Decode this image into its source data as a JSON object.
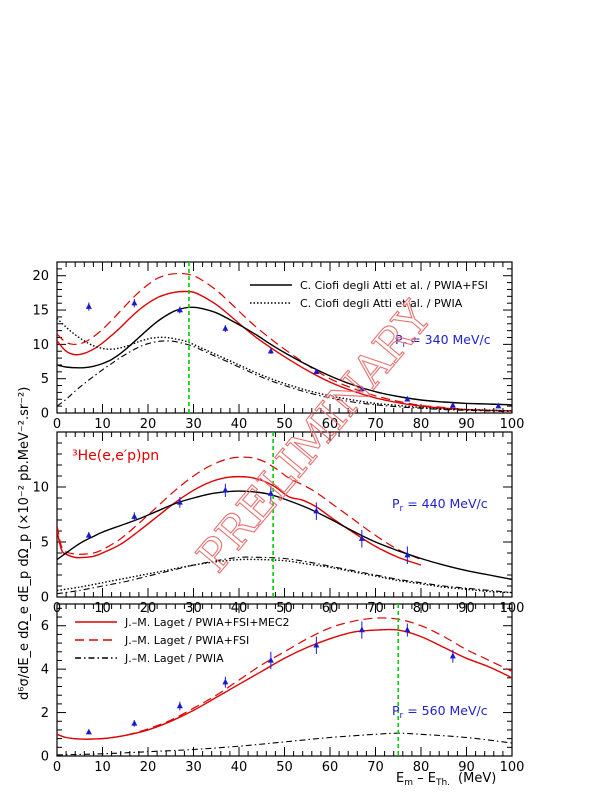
{
  "figure": {
    "xlabel": "E_m – E_Th.  (MeV)",
    "xlabel_main": "E",
    "xlabel_sub1": "m",
    "xlabel_mid": " – E",
    "xlabel_sub2": "Th.",
    "xlabel_unit": "(MeV)",
    "ylabel": "d⁶σ/dE_e dΩ_e dE_p dΩ_p  (×10⁻² pb.MeV⁻².sr⁻²)",
    "reaction": "³He(e,e′p)pn",
    "watermark": "PRELIMINARY",
    "colors": {
      "data": "#1a1acc",
      "laget": "#e00000",
      "ciofi": "#000000",
      "marker": "#00cc00"
    }
  },
  "chart_data": [
    {
      "type": "line",
      "panel": "top",
      "momentum_label": "P_r = 340 MeV/c",
      "xlim": [
        0,
        100
      ],
      "ylim": [
        0,
        22
      ],
      "yticks": [
        0,
        5,
        10,
        15,
        20
      ],
      "xticks": [
        0,
        10,
        20,
        30,
        40,
        50,
        60,
        70,
        80,
        90,
        100
      ],
      "vline_x": 29,
      "legend": [
        {
          "label": "C. Ciofi degli Atti et al. / PWIA+FSI",
          "style": "solid",
          "color": "#000000"
        },
        {
          "label": "C. Ciofi degli Atti et al. / PWIA",
          "style": "dotted",
          "color": "#000000"
        }
      ],
      "data_points": [
        {
          "x": 7,
          "y": 15.5,
          "err": 0.6
        },
        {
          "x": 17,
          "y": 16.0,
          "err": 0.6
        },
        {
          "x": 27,
          "y": 15.0,
          "err": 0.5
        },
        {
          "x": 37,
          "y": 12.3,
          "err": 0.5
        },
        {
          "x": 47,
          "y": 9.0,
          "err": 0.4
        },
        {
          "x": 57,
          "y": 6.0,
          "err": 0.3
        },
        {
          "x": 67,
          "y": 3.5,
          "err": 0.3
        },
        {
          "x": 77,
          "y": 2.0,
          "err": 0.3
        },
        {
          "x": 87,
          "y": 1.1,
          "err": 0.2
        },
        {
          "x": 97,
          "y": 1.0,
          "err": 0.2
        }
      ],
      "series": [
        {
          "style": "laget_full",
          "x": [
            0,
            2,
            4,
            6,
            8,
            10,
            12,
            14,
            16,
            18,
            20,
            22,
            24,
            26,
            28,
            30,
            32,
            35,
            38,
            41,
            44,
            47,
            50,
            55,
            60,
            65,
            70,
            75,
            80,
            85,
            90,
            95,
            100
          ],
          "y": [
            10.5,
            9.0,
            8.5,
            8.7,
            9.3,
            10.2,
            11.3,
            12.5,
            13.8,
            15.0,
            16.0,
            16.8,
            17.3,
            17.6,
            17.7,
            17.6,
            17.0,
            15.8,
            14.2,
            12.5,
            10.9,
            9.5,
            8.2,
            6.2,
            4.5,
            3.2,
            2.2,
            1.5,
            1.0,
            0.7,
            0.5,
            0.4,
            0.3
          ]
        },
        {
          "style": "laget_nomec",
          "x": [
            0,
            2,
            4,
            6,
            8,
            10,
            12,
            14,
            16,
            18,
            20,
            22,
            24,
            26,
            28,
            30,
            32,
            35,
            38,
            41,
            44,
            47,
            50,
            55,
            60,
            65,
            70,
            75,
            80,
            85,
            90,
            95,
            100
          ],
          "y": [
            11.5,
            10.3,
            10.0,
            10.3,
            11.1,
            12.2,
            13.5,
            14.9,
            16.3,
            17.6,
            18.7,
            19.6,
            20.1,
            20.3,
            20.3,
            20.0,
            19.3,
            17.9,
            16.1,
            14.2,
            12.4,
            10.8,
            9.3,
            7.0,
            5.0,
            3.6,
            2.5,
            1.7,
            1.1,
            0.8,
            0.5,
            0.4,
            0.3
          ]
        },
        {
          "style": "ciofi_fsi",
          "x": [
            0,
            2,
            4,
            6,
            8,
            10,
            12,
            14,
            16,
            18,
            20,
            22,
            24,
            26,
            28,
            30,
            32,
            35,
            38,
            41,
            44,
            47,
            50,
            55,
            60,
            65,
            70,
            75,
            80,
            85,
            90,
            95,
            100
          ],
          "y": [
            7.0,
            6.7,
            6.6,
            6.6,
            6.8,
            7.2,
            7.8,
            8.7,
            9.8,
            11.0,
            12.2,
            13.3,
            14.2,
            14.9,
            15.3,
            15.4,
            15.2,
            14.6,
            13.6,
            12.5,
            11.3,
            10.0,
            8.8,
            7.0,
            5.4,
            4.1,
            3.1,
            2.4,
            1.9,
            1.6,
            1.4,
            1.3,
            1.2
          ]
        },
        {
          "style": "ciofi_pwia",
          "x": [
            0,
            2,
            4,
            6,
            8,
            10,
            12,
            14,
            16,
            18,
            20,
            22,
            24,
            26,
            28,
            30,
            32,
            35,
            38,
            41,
            44,
            47,
            50,
            55,
            60,
            65,
            70,
            75,
            80,
            85,
            90,
            95,
            100
          ],
          "y": [
            13.8,
            12.5,
            11.4,
            10.5,
            9.8,
            9.4,
            9.3,
            9.5,
            9.9,
            10.4,
            10.8,
            11.0,
            11.0,
            10.8,
            10.5,
            10.0,
            9.4,
            8.5,
            7.6,
            6.7,
            5.8,
            5.0,
            4.3,
            3.3,
            2.5,
            1.9,
            1.4,
            1.1,
            0.8,
            0.6,
            0.5,
            0.4,
            0.3
          ]
        },
        {
          "style": "laget_pwia",
          "x": [
            0,
            2,
            4,
            6,
            8,
            10,
            12,
            14,
            16,
            18,
            20,
            22,
            24,
            26,
            28,
            30,
            32,
            35,
            38,
            41,
            44,
            47,
            50,
            55,
            60,
            65,
            70,
            75,
            80,
            85,
            90,
            95,
            100
          ],
          "y": [
            1.0,
            2.0,
            3.2,
            4.3,
            5.3,
            6.3,
            7.2,
            8.1,
            8.9,
            9.6,
            10.1,
            10.4,
            10.5,
            10.4,
            10.1,
            9.7,
            9.1,
            8.2,
            7.3,
            6.4,
            5.5,
            4.7,
            4.0,
            3.0,
            2.2,
            1.6,
            1.2,
            0.9,
            0.7,
            0.5,
            0.4,
            0.3,
            0.2
          ]
        }
      ]
    },
    {
      "type": "line",
      "panel": "middle",
      "momentum_label": "P_r = 440 MeV/c",
      "xlim": [
        0,
        100
      ],
      "ylim": [
        0,
        15
      ],
      "yticks": [
        0,
        5,
        10
      ],
      "xticks": [
        0,
        10,
        20,
        30,
        40,
        50,
        60,
        70,
        80,
        90,
        100
      ],
      "vline_x": 47.5,
      "data_points": [
        {
          "x": 7,
          "y": 5.6,
          "err": 0.3
        },
        {
          "x": 17,
          "y": 7.3,
          "err": 0.4
        },
        {
          "x": 27,
          "y": 8.6,
          "err": 0.5
        },
        {
          "x": 37,
          "y": 9.7,
          "err": 0.6
        },
        {
          "x": 47,
          "y": 9.4,
          "err": 0.7
        },
        {
          "x": 57,
          "y": 7.8,
          "err": 0.8
        },
        {
          "x": 67,
          "y": 5.3,
          "err": 0.8
        },
        {
          "x": 77,
          "y": 3.8,
          "err": 0.8
        }
      ],
      "series": [
        {
          "style": "laget_full",
          "x": [
            0,
            1,
            2,
            4,
            6,
            8,
            10,
            14,
            18,
            22,
            26,
            30,
            34,
            38,
            42,
            45,
            48,
            51,
            54,
            57,
            60,
            65,
            70,
            75,
            80
          ],
          "y": [
            6.0,
            4.3,
            3.9,
            3.6,
            3.6,
            3.7,
            4.0,
            4.8,
            6.0,
            7.3,
            8.6,
            9.7,
            10.5,
            10.9,
            10.9,
            10.6,
            10.0,
            9.1,
            8.8,
            8.2,
            7.3,
            5.9,
            4.6,
            3.6,
            2.9
          ]
        },
        {
          "style": "laget_nomec",
          "x": [
            0,
            1,
            2,
            4,
            6,
            8,
            10,
            14,
            18,
            22,
            26,
            30,
            34,
            38,
            42,
            45,
            48,
            51,
            54,
            57,
            60,
            65,
            70,
            75,
            80
          ],
          "y": [
            6.5,
            4.6,
            4.1,
            3.9,
            3.9,
            4.0,
            4.3,
            5.3,
            6.7,
            8.2,
            9.7,
            11.0,
            12.0,
            12.6,
            12.7,
            12.4,
            11.7,
            10.8,
            10.2,
            9.5,
            8.6,
            7.1,
            5.6,
            4.3,
            3.4
          ]
        },
        {
          "style": "ciofi_fsi",
          "x": [
            0,
            2,
            4,
            6,
            8,
            10,
            14,
            18,
            22,
            26,
            30,
            34,
            38,
            42,
            46,
            50,
            55,
            60,
            65,
            70,
            75,
            80,
            85,
            90,
            95,
            100
          ],
          "y": [
            3.4,
            4.0,
            4.6,
            5.1,
            5.5,
            5.9,
            6.5,
            7.1,
            7.8,
            8.5,
            9.0,
            9.4,
            9.6,
            9.6,
            9.4,
            8.9,
            8.1,
            7.1,
            6.0,
            5.0,
            4.2,
            3.5,
            2.9,
            2.4,
            2.0,
            1.6
          ]
        },
        {
          "style": "ciofi_pwia",
          "x": [
            0,
            5,
            10,
            15,
            20,
            25,
            30,
            35,
            40,
            45,
            50,
            55,
            60,
            65,
            70,
            75,
            80,
            85,
            90,
            95,
            100
          ],
          "y": [
            0.6,
            0.9,
            1.3,
            1.7,
            2.1,
            2.5,
            2.9,
            3.2,
            3.4,
            3.4,
            3.3,
            3.0,
            2.7,
            2.3,
            1.9,
            1.5,
            1.2,
            0.9,
            0.7,
            0.5,
            0.4
          ]
        },
        {
          "style": "laget_pwia",
          "x": [
            0,
            5,
            10,
            15,
            20,
            25,
            30,
            35,
            40,
            45,
            50,
            55,
            60,
            65,
            70,
            75,
            80,
            85,
            90,
            95,
            100
          ],
          "y": [
            0.3,
            0.6,
            1.0,
            1.4,
            1.9,
            2.4,
            2.9,
            3.3,
            3.6,
            3.6,
            3.5,
            3.2,
            2.8,
            2.4,
            2.0,
            1.6,
            1.3,
            1.0,
            0.8,
            0.6,
            0.4
          ]
        }
      ]
    },
    {
      "type": "line",
      "panel": "bottom",
      "momentum_label": "P_r = 560 MeV/c",
      "xlim": [
        0,
        100
      ],
      "ylim": [
        0,
        7
      ],
      "yticks": [
        0,
        2,
        4,
        6
      ],
      "xticks": [
        0,
        10,
        20,
        30,
        40,
        50,
        60,
        70,
        80,
        90,
        100
      ],
      "vline_x": 75,
      "legend": [
        {
          "label": "J.–M. Laget / PWIA+FSI+MEC2",
          "style": "solid",
          "color": "#e00000"
        },
        {
          "label": "J.–M. Laget / PWIA+FSI",
          "style": "dashed",
          "color": "#e00000"
        },
        {
          "label": "J.–M. Laget / PWIA",
          "style": "dashdot",
          "color": "#000000"
        }
      ],
      "data_points": [
        {
          "x": 7,
          "y": 1.1,
          "err": 0.1
        },
        {
          "x": 17,
          "y": 1.5,
          "err": 0.15
        },
        {
          "x": 27,
          "y": 2.3,
          "err": 0.2
        },
        {
          "x": 37,
          "y": 3.4,
          "err": 0.25
        },
        {
          "x": 47,
          "y": 4.4,
          "err": 0.4
        },
        {
          "x": 57,
          "y": 5.1,
          "err": 0.4
        },
        {
          "x": 67,
          "y": 5.8,
          "err": 0.4
        },
        {
          "x": 77,
          "y": 5.8,
          "err": 0.3
        },
        {
          "x": 87,
          "y": 4.6,
          "err": 0.3
        }
      ],
      "series": [
        {
          "style": "laget_full",
          "x": [
            0,
            2,
            5,
            10,
            15,
            20,
            25,
            30,
            35,
            40,
            45,
            50,
            55,
            60,
            65,
            70,
            75,
            80,
            85,
            90,
            95,
            100
          ],
          "y": [
            1.0,
            0.85,
            0.78,
            0.8,
            0.95,
            1.2,
            1.6,
            2.1,
            2.7,
            3.3,
            3.9,
            4.5,
            5.0,
            5.4,
            5.7,
            5.8,
            5.8,
            5.5,
            5.0,
            4.5,
            4.1,
            3.6
          ]
        },
        {
          "style": "laget_nomec",
          "x": [
            0,
            2,
            5,
            10,
            15,
            20,
            25,
            30,
            35,
            40,
            45,
            50,
            55,
            60,
            65,
            70,
            75,
            80,
            85,
            90,
            95,
            100
          ],
          "y": [
            1.0,
            0.85,
            0.78,
            0.8,
            0.95,
            1.25,
            1.65,
            2.2,
            2.8,
            3.5,
            4.2,
            4.8,
            5.4,
            5.9,
            6.2,
            6.35,
            6.3,
            6.0,
            5.5,
            4.9,
            4.4,
            3.9
          ]
        },
        {
          "style": "laget_pwia",
          "x": [
            0,
            10,
            20,
            30,
            40,
            50,
            60,
            70,
            75,
            80,
            90,
            100
          ],
          "y": [
            0.05,
            0.1,
            0.2,
            0.3,
            0.45,
            0.65,
            0.85,
            1.0,
            1.05,
            1.0,
            0.85,
            0.6
          ]
        }
      ]
    }
  ]
}
